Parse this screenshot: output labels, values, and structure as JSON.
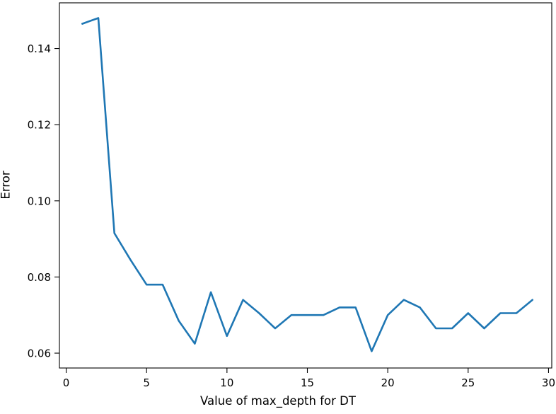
{
  "figure": {
    "background": "#ffffff",
    "text_color": "#000000",
    "spine_color": "#000000"
  },
  "chart_data": {
    "type": "line",
    "title": "",
    "xlabel": "Value of max_depth for DT",
    "ylabel": "Error",
    "x": [
      1,
      2,
      3,
      4,
      5,
      6,
      7,
      8,
      9,
      10,
      11,
      12,
      13,
      14,
      15,
      16,
      17,
      18,
      19,
      20,
      21,
      22,
      23,
      24,
      25,
      26,
      27,
      28,
      29
    ],
    "y": [
      0.1465,
      0.148,
      0.0915,
      0.0845,
      0.078,
      0.078,
      0.0685,
      0.0625,
      0.076,
      0.0645,
      0.074,
      0.0705,
      0.0665,
      0.07,
      0.07,
      0.07,
      0.072,
      0.072,
      0.0605,
      0.07,
      0.074,
      0.072,
      0.0665,
      0.0665,
      0.0705,
      0.0665,
      0.0705,
      0.0705,
      0.074
    ],
    "xlim": [
      -0.42,
      30.2
    ],
    "ylim": [
      0.0561,
      0.152
    ],
    "x_ticks": [
      0,
      5,
      10,
      15,
      20,
      25,
      30
    ],
    "y_ticks": [
      0.06,
      0.08,
      0.1,
      0.12,
      0.14
    ],
    "line_color": "#1f77b4",
    "line_width": 2.6,
    "grid": false,
    "legend": null
  }
}
